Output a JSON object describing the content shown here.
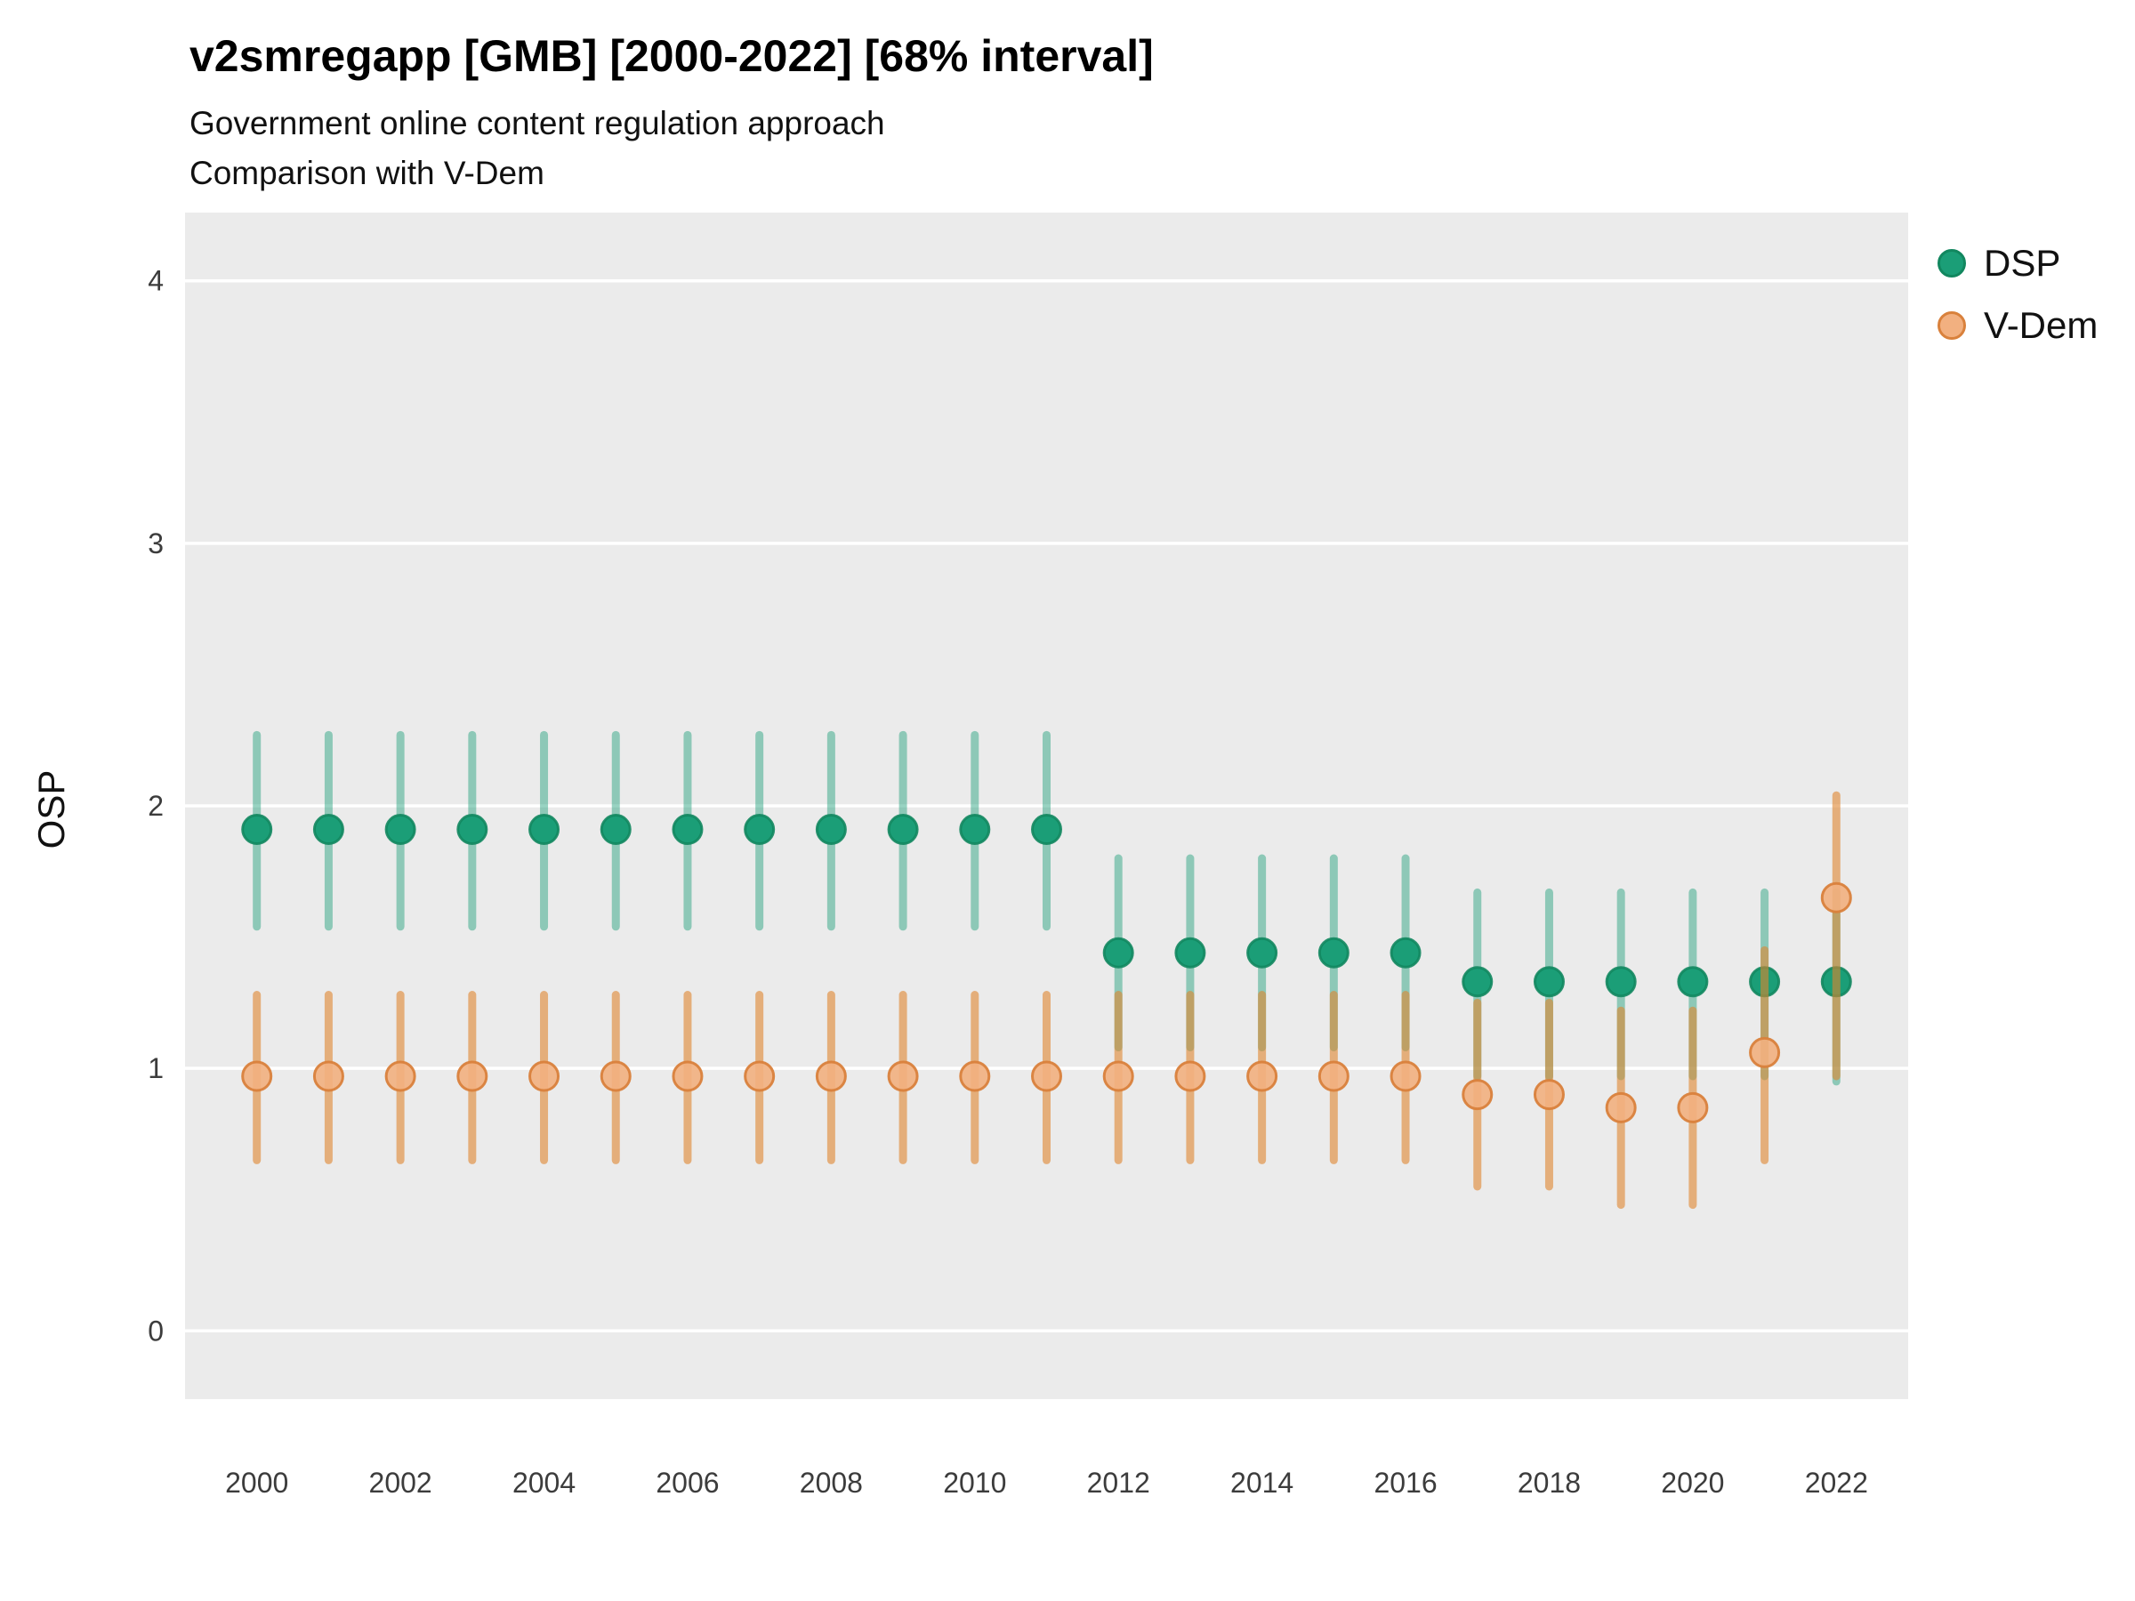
{
  "header": {
    "title": "v2smregapp [GMB] [2000-2022] [68% interval]",
    "subtitle1": "Government online content regulation approach",
    "subtitle2": "Comparison with V-Dem"
  },
  "chart_data": {
    "type": "scatter",
    "variant": "pointrange",
    "title": "v2smregapp [GMB] [2000-2022] [68% interval]",
    "subtitle": "Government online content regulation approach — Comparison with V-Dem",
    "interval_label": "68% interval",
    "xlabel": "",
    "ylabel": "OSP",
    "xlim": [
      1999,
      2023
    ],
    "ylim": [
      -0.26,
      4.26
    ],
    "x_ticks": [
      2000,
      2002,
      2004,
      2006,
      2008,
      2010,
      2012,
      2014,
      2016,
      2018,
      2020,
      2022
    ],
    "y_ticks": [
      0,
      1,
      2,
      3,
      4
    ],
    "grid": true,
    "panel_color": "#EBEBEB",
    "gridline_color": "#FFFFFF",
    "legend_position": "right",
    "series": [
      {
        "name": "DSP",
        "point_fill": "#1b9e77",
        "point_fill_opacity": 1,
        "point_stroke": "#12875f",
        "point_stroke_opacity": 0.9,
        "interval_color": "#1b9e77",
        "interval_opacity": 0.45,
        "points": [
          {
            "x": 2000,
            "y": 1.91,
            "lo": 1.54,
            "hi": 2.27
          },
          {
            "x": 2001,
            "y": 1.91,
            "lo": 1.54,
            "hi": 2.27
          },
          {
            "x": 2002,
            "y": 1.91,
            "lo": 1.54,
            "hi": 2.27
          },
          {
            "x": 2003,
            "y": 1.91,
            "lo": 1.54,
            "hi": 2.27
          },
          {
            "x": 2004,
            "y": 1.91,
            "lo": 1.54,
            "hi": 2.27
          },
          {
            "x": 2005,
            "y": 1.91,
            "lo": 1.54,
            "hi": 2.27
          },
          {
            "x": 2006,
            "y": 1.91,
            "lo": 1.54,
            "hi": 2.27
          },
          {
            "x": 2007,
            "y": 1.91,
            "lo": 1.54,
            "hi": 2.27
          },
          {
            "x": 2008,
            "y": 1.91,
            "lo": 1.54,
            "hi": 2.27
          },
          {
            "x": 2009,
            "y": 1.91,
            "lo": 1.54,
            "hi": 2.27
          },
          {
            "x": 2010,
            "y": 1.91,
            "lo": 1.54,
            "hi": 2.27
          },
          {
            "x": 2011,
            "y": 1.91,
            "lo": 1.54,
            "hi": 2.27
          },
          {
            "x": 2012,
            "y": 1.44,
            "lo": 1.08,
            "hi": 1.8
          },
          {
            "x": 2013,
            "y": 1.44,
            "lo": 1.08,
            "hi": 1.8
          },
          {
            "x": 2014,
            "y": 1.44,
            "lo": 1.08,
            "hi": 1.8
          },
          {
            "x": 2015,
            "y": 1.44,
            "lo": 1.08,
            "hi": 1.8
          },
          {
            "x": 2016,
            "y": 1.44,
            "lo": 1.08,
            "hi": 1.8
          },
          {
            "x": 2017,
            "y": 1.33,
            "lo": 0.97,
            "hi": 1.67
          },
          {
            "x": 2018,
            "y": 1.33,
            "lo": 0.97,
            "hi": 1.67
          },
          {
            "x": 2019,
            "y": 1.33,
            "lo": 0.97,
            "hi": 1.67
          },
          {
            "x": 2020,
            "y": 1.33,
            "lo": 0.97,
            "hi": 1.67
          },
          {
            "x": 2021,
            "y": 1.33,
            "lo": 0.97,
            "hi": 1.67
          },
          {
            "x": 2022,
            "y": 1.33,
            "lo": 0.95,
            "hi": 1.67
          }
        ]
      },
      {
        "name": "V-Dem",
        "point_fill": "#f2b080",
        "point_fill_opacity": 0.9,
        "point_stroke": "#d9813c",
        "point_stroke_opacity": 0.95,
        "interval_color": "#e0852f",
        "interval_opacity": 0.6,
        "points": [
          {
            "x": 2000,
            "y": 0.97,
            "lo": 0.65,
            "hi": 1.28
          },
          {
            "x": 2001,
            "y": 0.97,
            "lo": 0.65,
            "hi": 1.28
          },
          {
            "x": 2002,
            "y": 0.97,
            "lo": 0.65,
            "hi": 1.28
          },
          {
            "x": 2003,
            "y": 0.97,
            "lo": 0.65,
            "hi": 1.28
          },
          {
            "x": 2004,
            "y": 0.97,
            "lo": 0.65,
            "hi": 1.28
          },
          {
            "x": 2005,
            "y": 0.97,
            "lo": 0.65,
            "hi": 1.28
          },
          {
            "x": 2006,
            "y": 0.97,
            "lo": 0.65,
            "hi": 1.28
          },
          {
            "x": 2007,
            "y": 0.97,
            "lo": 0.65,
            "hi": 1.28
          },
          {
            "x": 2008,
            "y": 0.97,
            "lo": 0.65,
            "hi": 1.28
          },
          {
            "x": 2009,
            "y": 0.97,
            "lo": 0.65,
            "hi": 1.28
          },
          {
            "x": 2010,
            "y": 0.97,
            "lo": 0.65,
            "hi": 1.28
          },
          {
            "x": 2011,
            "y": 0.97,
            "lo": 0.65,
            "hi": 1.28
          },
          {
            "x": 2012,
            "y": 0.97,
            "lo": 0.65,
            "hi": 1.28
          },
          {
            "x": 2013,
            "y": 0.97,
            "lo": 0.65,
            "hi": 1.28
          },
          {
            "x": 2014,
            "y": 0.97,
            "lo": 0.65,
            "hi": 1.28
          },
          {
            "x": 2015,
            "y": 0.97,
            "lo": 0.65,
            "hi": 1.28
          },
          {
            "x": 2016,
            "y": 0.97,
            "lo": 0.65,
            "hi": 1.28
          },
          {
            "x": 2017,
            "y": 0.9,
            "lo": 0.55,
            "hi": 1.25
          },
          {
            "x": 2018,
            "y": 0.9,
            "lo": 0.55,
            "hi": 1.25
          },
          {
            "x": 2019,
            "y": 0.85,
            "lo": 0.48,
            "hi": 1.22
          },
          {
            "x": 2020,
            "y": 0.85,
            "lo": 0.48,
            "hi": 1.22
          },
          {
            "x": 2021,
            "y": 1.06,
            "lo": 0.65,
            "hi": 1.45
          },
          {
            "x": 2022,
            "y": 1.65,
            "lo": 0.97,
            "hi": 2.04
          }
        ]
      }
    ]
  }
}
